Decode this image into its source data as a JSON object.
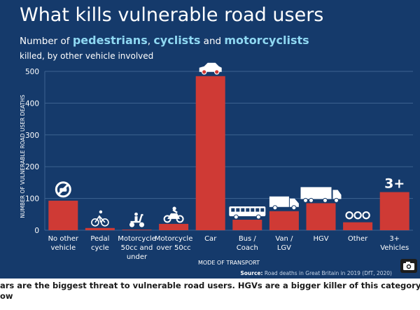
{
  "title": "What kills vulnerable road users",
  "subtitle": {
    "prefix": "Number of",
    "w1": "pedestrians",
    "sep1": ",",
    "w2": "cyclists",
    "sep2": "and",
    "w3": "motorcyclists"
  },
  "subtitle2": "killed, by other vehicle involved",
  "source": {
    "label": "Source:",
    "text": "Road deaths in Great Britain in 2019 (DfT, 2020)"
  },
  "caption": {
    "line1": "ars are the biggest threat to vulnerable road users. HGVs are a bigger killer of this category than vans and buses, the sta",
    "line2": "ow"
  },
  "colors": {
    "background": "#153a6b",
    "bar": "#cf3a35",
    "grid": "#3d6390",
    "accent": "#8fd8f2"
  },
  "chart_data": {
    "type": "bar",
    "title": "What kills vulnerable road users",
    "xlabel": "MODE OF TRANSPORT",
    "ylabel": "NUMBER OF VULNERABLE ROAD USER DEATHS",
    "ylim": [
      0,
      500
    ],
    "yticks": [
      0,
      100,
      200,
      300,
      400,
      500
    ],
    "grid": true,
    "categories": [
      [
        "No other",
        "vehicle"
      ],
      [
        "Pedal",
        "cycle"
      ],
      [
        "Motorcycle",
        "50cc and",
        "under"
      ],
      [
        "Motorcycle",
        "over 50cc"
      ],
      [
        "Car"
      ],
      [
        "Bus /",
        "Coach"
      ],
      [
        "Van /",
        "LGV"
      ],
      [
        "HGV"
      ],
      [
        "Other"
      ],
      [
        "3+",
        "Vehicles"
      ]
    ],
    "values": [
      93,
      7,
      2,
      20,
      485,
      33,
      60,
      85,
      25,
      120
    ],
    "icons": [
      "no-vehicle-icon",
      "bicycle-icon",
      "scooter-icon",
      "motorcycle-icon",
      "car-icon",
      "bus-icon",
      "van-icon",
      "hgv-icon",
      "other-icon",
      "three-plus-vehicles-icon"
    ],
    "icon_text": {
      "three-plus-vehicles-icon": "3+"
    }
  }
}
